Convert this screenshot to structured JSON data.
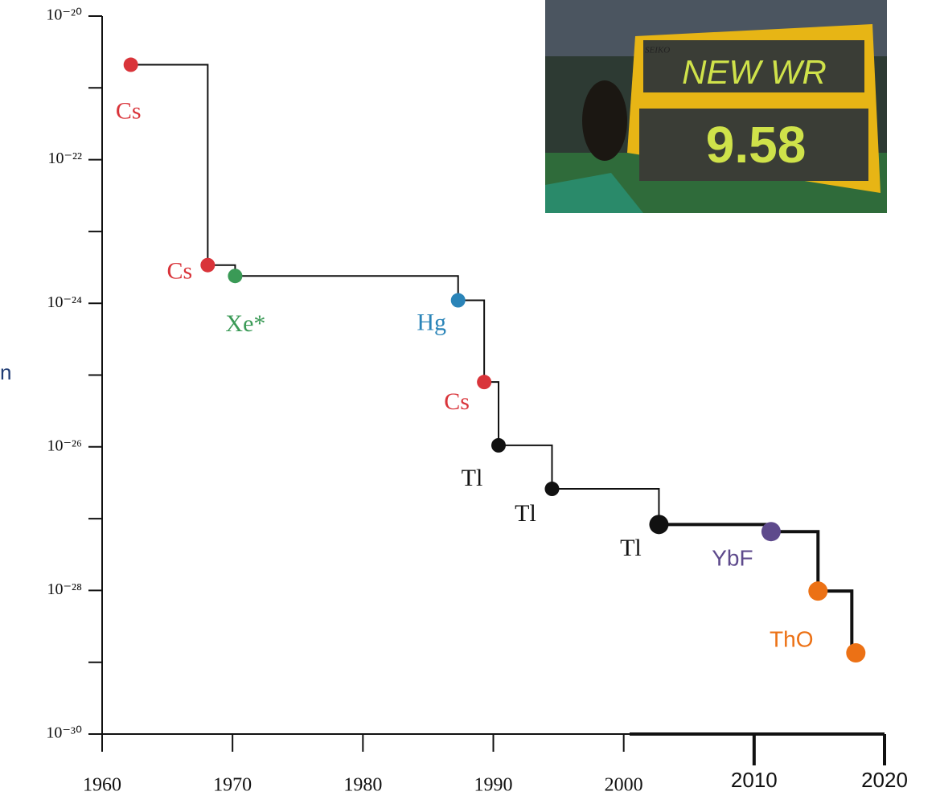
{
  "chart_data": {
    "type": "step-scatter",
    "x": [
      1962.2,
      1968.1,
      1970.2,
      1987.3,
      1989.3,
      1990.4,
      1994.5,
      2002.7,
      2011.3,
      2014.9,
      2017.8
    ],
    "values": [
      2.1e-21,
      3.4e-24,
      2.4e-24,
      1.1e-24,
      8e-26,
      1.05e-26,
      2.6e-27,
      8.3e-28,
      6.6e-28,
      9.8e-29,
      1.35e-29
    ],
    "point_labels": [
      "Cs",
      "Cs",
      "Xe*",
      "Hg",
      "Cs",
      "Tl",
      "Tl",
      "Tl",
      "YbF",
      "ThO",
      null
    ],
    "point_colors": [
      "#d9343a",
      "#d9343a",
      "#3a9a56",
      "#2a84b8",
      "#d9343a",
      "#111111",
      "#111111",
      "#111111",
      "#5e4a8c",
      "#ec7115",
      "#ec7115"
    ],
    "ylim": [
      1e-30,
      1e-20
    ],
    "log_scale": true,
    "yticks": [
      {
        "value": 1e-30,
        "label": "10⁻³⁰"
      },
      {
        "value": 1e-28,
        "label": "10⁻²⁸"
      },
      {
        "value": 1e-26,
        "label": "10⁻²⁶"
      },
      {
        "value": 1e-24,
        "label": "10⁻²⁴"
      },
      {
        "value": 1e-22,
        "label": "10⁻²²"
      },
      {
        "value": 1e-20,
        "label": "10⁻²⁰"
      }
    ],
    "xlim": [
      1960,
      2020
    ],
    "xticks": [
      1960,
      1970,
      1980,
      1990,
      2000,
      2010,
      2020
    ],
    "annotation": "n",
    "inset_photo": {
      "brand": "SEIKO",
      "board_top": "NEW WR",
      "board_bottom": "9.58"
    }
  }
}
